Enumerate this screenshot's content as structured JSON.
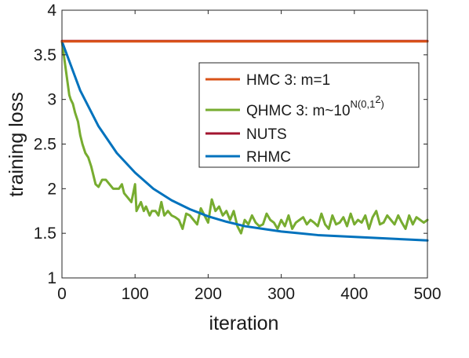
{
  "chart_data": {
    "type": "line",
    "title": "",
    "xlabel": "iteration",
    "ylabel": "training loss",
    "xlim": [
      0,
      500
    ],
    "ylim": [
      1,
      4
    ],
    "xticks": [
      0,
      100,
      200,
      300,
      400,
      500
    ],
    "yticks": [
      1,
      1.5,
      2,
      2.5,
      3,
      3.5,
      4
    ],
    "xtick_labels": [
      "0",
      "100",
      "200",
      "300",
      "400",
      "500"
    ],
    "ytick_labels": [
      "1",
      "1.5",
      "2",
      "2.5",
      "3",
      "3.5",
      "4"
    ],
    "grid": false,
    "legend_position": "right",
    "series": [
      {
        "name": "HMC 3: m=1",
        "color": "#d95319",
        "x": [
          0,
          500
        ],
        "y": [
          3.65,
          3.65
        ]
      },
      {
        "name": "QHMC 3: m~10",
        "name_superscript": "N(0,1",
        "name_superscript_power": "2",
        "name_superscript_close": ")",
        "color": "#77ac30",
        "x": [
          0,
          5,
          10,
          12,
          15,
          18,
          22,
          25,
          28,
          32,
          36,
          40,
          43,
          46,
          50,
          55,
          60,
          70,
          78,
          82,
          85,
          90,
          95,
          100,
          102,
          108,
          112,
          115,
          120,
          123,
          128,
          132,
          136,
          140,
          145,
          150,
          155,
          160,
          165,
          170,
          175,
          180,
          185,
          190,
          195,
          200,
          205,
          210,
          215,
          220,
          225,
          230,
          235,
          240,
          245,
          250,
          255,
          260,
          265,
          270,
          275,
          280,
          285,
          290,
          295,
          300,
          305,
          310,
          315,
          320,
          325,
          330,
          335,
          340,
          345,
          350,
          355,
          360,
          365,
          370,
          375,
          380,
          385,
          390,
          395,
          400,
          405,
          410,
          415,
          420,
          425,
          430,
          435,
          440,
          445,
          450,
          455,
          460,
          465,
          470,
          475,
          480,
          485,
          490,
          495,
          500
        ],
        "y": [
          3.65,
          3.35,
          3.05,
          3.0,
          2.95,
          2.85,
          2.75,
          2.6,
          2.5,
          2.4,
          2.35,
          2.25,
          2.15,
          2.05,
          2.02,
          2.1,
          2.1,
          2.0,
          2.0,
          2.05,
          1.95,
          1.9,
          1.85,
          2.05,
          1.75,
          1.85,
          1.75,
          1.8,
          1.7,
          1.75,
          1.75,
          1.7,
          1.85,
          1.7,
          1.75,
          1.7,
          1.68,
          1.65,
          1.55,
          1.72,
          1.7,
          1.65,
          1.6,
          1.78,
          1.7,
          1.62,
          1.88,
          1.75,
          1.8,
          1.7,
          1.75,
          1.65,
          1.75,
          1.58,
          1.5,
          1.65,
          1.6,
          1.7,
          1.62,
          1.58,
          1.6,
          1.72,
          1.65,
          1.62,
          1.55,
          1.65,
          1.58,
          1.7,
          1.55,
          1.62,
          1.65,
          1.68,
          1.6,
          1.65,
          1.62,
          1.58,
          1.72,
          1.6,
          1.55,
          1.7,
          1.6,
          1.62,
          1.68,
          1.58,
          1.72,
          1.6,
          1.65,
          1.62,
          1.7,
          1.55,
          1.68,
          1.75,
          1.6,
          1.62,
          1.7,
          1.65,
          1.6,
          1.7,
          1.62,
          1.55,
          1.7,
          1.6,
          1.68,
          1.65,
          1.62,
          1.65
        ]
      },
      {
        "name": "NUTS",
        "color": "#a2142f",
        "x": [
          0,
          500
        ],
        "y": [
          3.655,
          3.655
        ]
      },
      {
        "name": "RHMC",
        "color": "#0072bd",
        "x": [
          0,
          25,
          50,
          75,
          100,
          125,
          150,
          175,
          200,
          225,
          250,
          275,
          300,
          325,
          350,
          375,
          400,
          425,
          450,
          475,
          500
        ],
        "y": [
          3.65,
          3.1,
          2.7,
          2.4,
          2.18,
          2.0,
          1.87,
          1.77,
          1.69,
          1.63,
          1.58,
          1.55,
          1.52,
          1.5,
          1.48,
          1.47,
          1.46,
          1.45,
          1.44,
          1.43,
          1.42
        ]
      }
    ]
  }
}
